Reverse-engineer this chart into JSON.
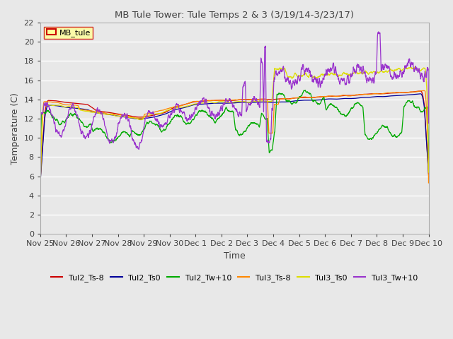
{
  "title": "MB Tule Tower: Tule Temps 2 & 3 (3/19/14-3/23/17)",
  "xlabel": "Time",
  "ylabel": "Temperature (C)",
  "ylim": [
    0,
    22
  ],
  "yticks": [
    0,
    2,
    4,
    6,
    8,
    10,
    12,
    14,
    16,
    18,
    20,
    22
  ],
  "xtick_labels": [
    "Nov 25",
    "Nov 26",
    "Nov 27",
    "Nov 28",
    "Nov 29",
    "Nov 30",
    "Dec 1",
    "Dec 2",
    "Dec 3",
    "Dec 4",
    "Dec 5",
    "Dec 6",
    "Dec 7",
    "Dec 8",
    "Dec 9",
    "Dec 10"
  ],
  "legend_label": "MB_tule",
  "series_colors": {
    "Tul2_Ts-8": "#cc0000",
    "Tul2_Ts0": "#000099",
    "Tul2_Tw+10": "#00aa00",
    "Tul3_Ts-8": "#ff8800",
    "Tul3_Ts0": "#dddd00",
    "Tul3_Tw+10": "#9933cc"
  },
  "background_color": "#e8e8e8",
  "grid_color": "#ffffff",
  "fig_facecolor": "#e8e8e8"
}
